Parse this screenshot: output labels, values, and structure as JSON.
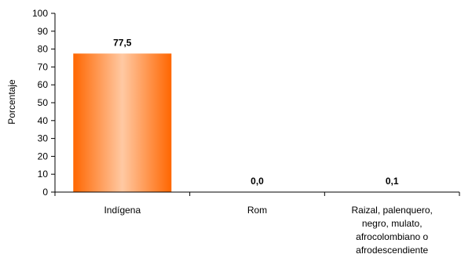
{
  "chart_data": {
    "type": "bar",
    "title": "",
    "xlabel": "",
    "ylabel": "Porcentaje",
    "ylim": [
      0,
      100
    ],
    "yticks": [
      0,
      10,
      20,
      30,
      40,
      50,
      60,
      70,
      80,
      90,
      100
    ],
    "grid": false,
    "legend": "none",
    "categories": [
      [
        "Indígena"
      ],
      [
        "Rom"
      ],
      [
        "Raizal, palenquero,",
        "negro, mulato,",
        "afrocolombiano o",
        "afrodescendiente"
      ]
    ],
    "values": [
      77.5,
      0.0,
      0.1
    ],
    "data_labels": [
      "77,5",
      "0,0",
      "0,1"
    ],
    "colors": {
      "bar_edge": "#FF6600",
      "bar_center": "#FFC9A3",
      "axis": "#000000"
    }
  }
}
